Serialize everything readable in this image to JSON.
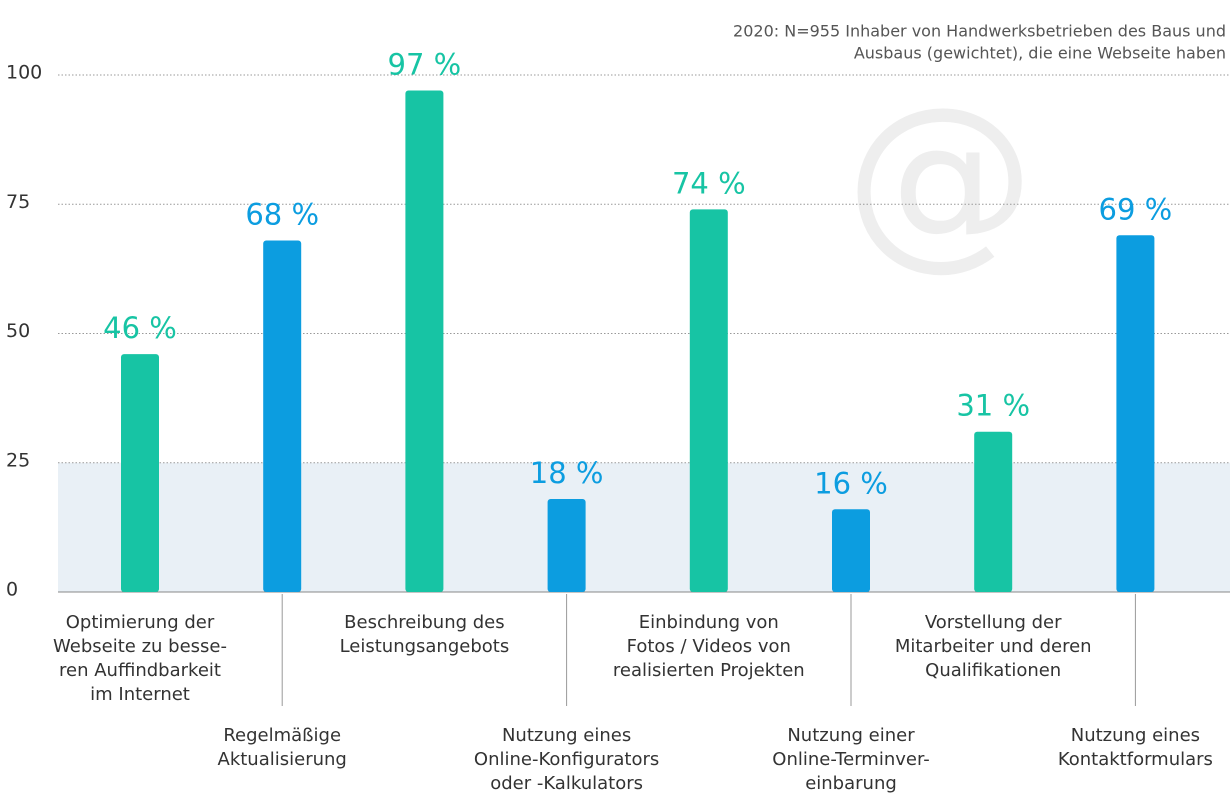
{
  "chart_data": {
    "type": "bar",
    "note": [
      "2020: N=955 Inhaber von Handwerksbetrieben des Baus und",
      "Ausbaus (gewichtet), die eine Webseite haben"
    ],
    "categories": [
      [
        "Optimierung der",
        "Webseite zu besse-",
        "ren Auffindbarkeit",
        "im Internet"
      ],
      [
        "Regelmäßige",
        "Aktualisierung"
      ],
      [
        "Beschreibung des",
        "Leistungsangebots"
      ],
      [
        "Nutzung eines",
        "Online-Konfigurators",
        "oder -Kalkulators"
      ],
      [
        "Einbindung von",
        "Fotos / Videos von",
        "realisierten Projekten"
      ],
      [
        "Nutzung einer",
        "Online-Terminver-",
        "einbarung"
      ],
      [
        "Vorstellung der",
        "Mitarbeiter und deren",
        "Qualifikationen"
      ],
      [
        "Nutzung eines",
        "Kontaktformulars"
      ]
    ],
    "values": [
      46,
      68,
      97,
      18,
      74,
      16,
      31,
      69
    ],
    "value_labels": [
      "46 %",
      "68 %",
      "97 %",
      "18 %",
      "74 %",
      "16 %",
      "31 %",
      "69 %"
    ],
    "colors": [
      "#17c4a4",
      "#0c9de0",
      "#17c4a4",
      "#0c9de0",
      "#17c4a4",
      "#0c9de0",
      "#17c4a4",
      "#0c9de0"
    ],
    "ylim": [
      0,
      100
    ],
    "yticks": [
      0,
      25,
      50,
      75,
      100
    ],
    "grid": true,
    "shaded_band": [
      0,
      25
    ]
  }
}
